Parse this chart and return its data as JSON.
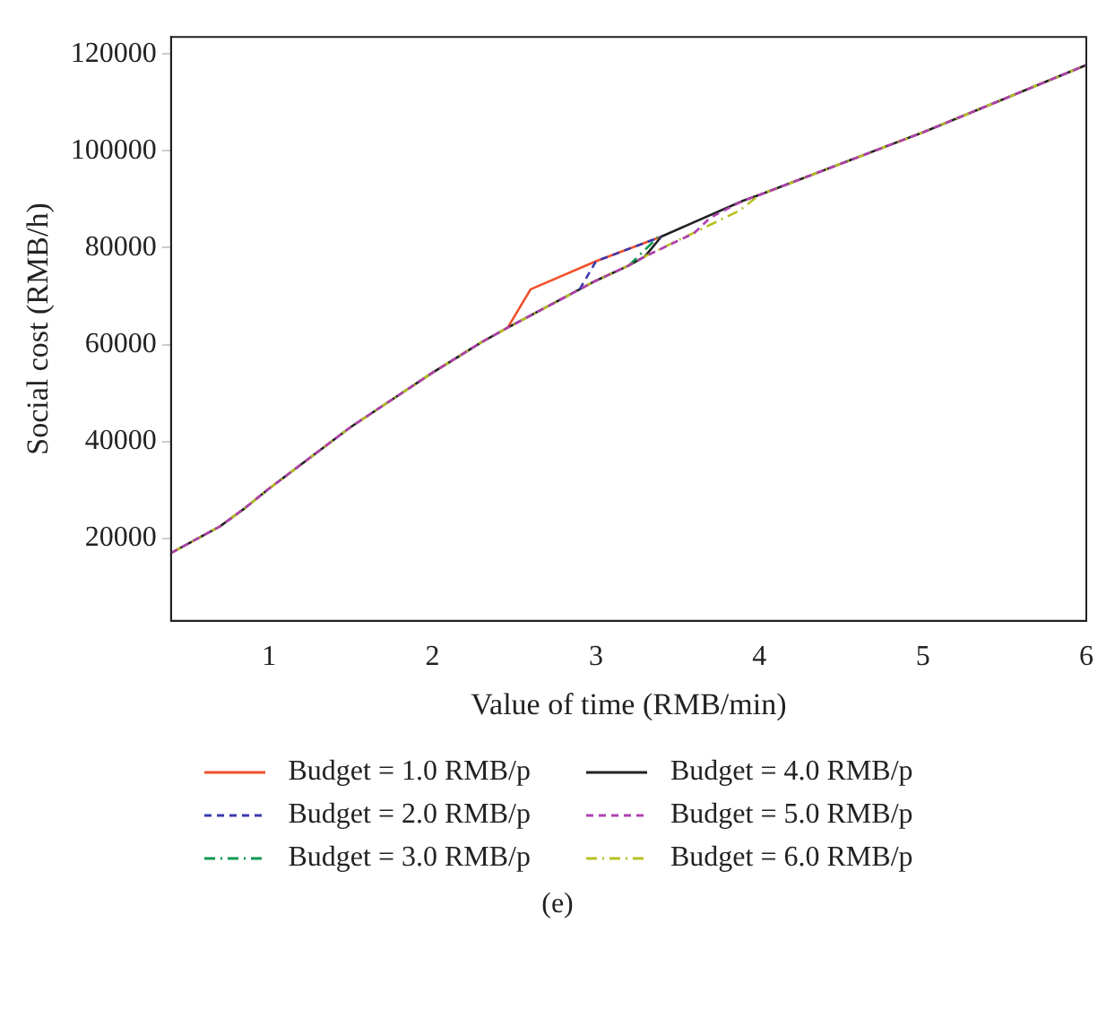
{
  "chart_data": {
    "type": "line",
    "xlabel": "Value of time (RMB/min)",
    "ylabel": "Social cost (RMB/h)",
    "xlim": [
      0.4,
      6
    ],
    "xticks": [
      1,
      2,
      3,
      4,
      5,
      6
    ],
    "ylim": [
      3000,
      123500
    ],
    "yticks": [
      20000,
      40000,
      60000,
      80000,
      100000,
      120000
    ],
    "grid": false,
    "legend": "bottom",
    "marker": "none",
    "annotations": [
      "(e)"
    ],
    "series": [
      {
        "name": "Budget = 1.0 RMB/p",
        "color": "#f0502a",
        "line_style": "solid",
        "x": [
          2.46,
          2.6,
          3,
          3.4
        ],
        "values": [
          63500,
          71400,
          77200,
          82300
        ]
      },
      {
        "name": "Budget = 2.0 RMB/p",
        "color": "#3b3bb0",
        "line_style": "dashed",
        "x": [
          2.9,
          3,
          3.4
        ],
        "values": [
          71400,
          77200,
          82300
        ]
      },
      {
        "name": "Budget = 3.0 RMB/p",
        "color": "#0a9a50",
        "line_style": "dotted",
        "x": [
          3.2,
          3.38
        ],
        "values": [
          76300,
          82200
        ]
      },
      {
        "name": "Budget = 4.0 RMB/p",
        "color": "#222222",
        "line_style": "solid",
        "x": [
          0.4,
          0.7,
          0.85,
          1,
          1.5,
          2,
          2.3,
          2.46,
          2.9,
          3,
          3.2,
          3.3,
          3.4,
          3.9,
          4,
          5,
          6
        ],
        "values": [
          17000,
          22500,
          26200,
          30300,
          43000,
          54200,
          60500,
          63500,
          71400,
          73200,
          76300,
          78200,
          82300,
          89700,
          90900,
          103800,
          117700
        ]
      },
      {
        "name": "Budget = 5.0 RMB/p",
        "color": "#b040b0",
        "line_style": "dashed",
        "x": [
          0.4,
          0.7,
          0.85,
          1,
          1.5,
          2,
          2.3,
          2.46,
          2.9,
          3,
          3.2,
          3.3,
          3.6,
          3.7,
          3.9,
          4,
          5,
          6
        ],
        "values": [
          17000,
          22500,
          26200,
          30300,
          43000,
          54200,
          60500,
          63500,
          71400,
          73200,
          76300,
          78200,
          83000,
          86200,
          89700,
          90900,
          103800,
          117700
        ]
      },
      {
        "name": "Budget = 6.0 RMB/p",
        "color": "#b8c020",
        "line_style": "dotted",
        "x": [
          0.4,
          0.7,
          0.85,
          1,
          1.5,
          2,
          2.3,
          2.46,
          2.9,
          3,
          3.2,
          3.3,
          3.88,
          4,
          5,
          6
        ],
        "values": [
          17000,
          22500,
          26200,
          30300,
          43000,
          54200,
          60500,
          63500,
          71400,
          73200,
          76300,
          78200,
          87700,
          90900,
          103800,
          117700
        ]
      }
    ]
  }
}
